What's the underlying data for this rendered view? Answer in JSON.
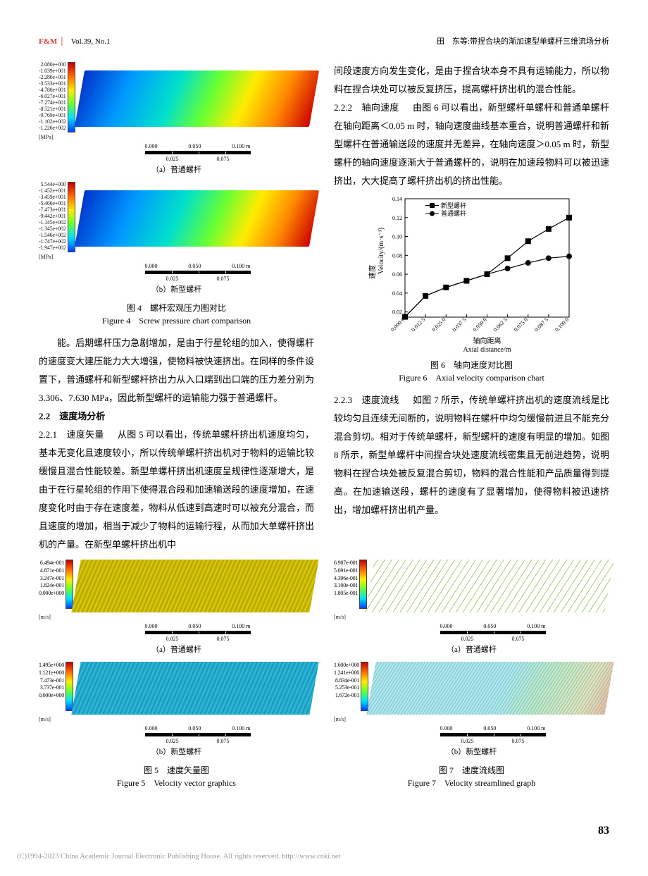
{
  "header": {
    "journal": "F&M",
    "volume": "Vol.39, No.1",
    "article_ref": "田　东等:带捏合块的渐加速型单螺杆三维流场分析"
  },
  "fig4": {
    "a": {
      "colorbar_values": [
        "2.080e+000",
        "-1.039e+001",
        "-2.286e+001",
        "-3.533e+001",
        "-4.780e+001",
        "-6.027e+001",
        "-7.274e+001",
        "-8.521e+001",
        "-9.769e+001",
        "-1.102e+002",
        "-1.226e+002"
      ],
      "unit": "[MPa]",
      "scale_ticks_top": [
        "0.000",
        "0.050",
        "0.100 m"
      ],
      "scale_ticks_bottom": [
        "0.025",
        "0.075"
      ],
      "caption": "（a）普通螺杆",
      "gradient": "linear-gradient(105deg, #0033cc 0%, #0099ff 20%, #00e0cc 40%, #66ff33 55%, #ffec00 70%, #ff8800 85%, #cc0000 100%)"
    },
    "b": {
      "colorbar_values": [
        "5.544e+000",
        "-1.452e+001",
        "-3.459e+001",
        "-5.466e+001",
        "-7.473e+001",
        "-9.442e+001",
        "-1.145e+002",
        "-1.345e+002",
        "-1.546e+002",
        "-1.747e+002",
        "-1.947e+002"
      ],
      "unit": "[MPa]",
      "scale_ticks_top": [
        "0.000",
        "0.050",
        "0.100 m"
      ],
      "scale_ticks_bottom": [
        "0.025",
        "0.075"
      ],
      "caption": "（b）新型螺杆",
      "gradient": "linear-gradient(105deg, #0033cc 0%, #0099ff 22%, #00e0cc 42%, #66ff33 58%, #ffec00 72%, #ff8800 86%, #cc0000 100%)"
    },
    "caption_cn": "图 4　螺杆宏观压力图对比",
    "caption_en": "Figure 4　Screw pressure chart comparison"
  },
  "text": {
    "p1": "能。后期螺杆压力急剧增加，是由于行星轮组的加入，使得螺杆的速度变大建压能力大大增强，使物料被快速挤出。在同样的条件设置下，普通螺杆和新型螺杆挤出力从入口端到出口端的压力差分别为 3.306、7.630 MPa，因此新型螺杆的运输能力强于普通螺杆。",
    "h22": "2.2　速度场分析",
    "p221_head": "2.2.1　速度矢量　",
    "p221": "从图 5 可以看出，传统单螺杆挤出机速度均匀，基本无变化且速度较小，所以传统单螺杆挤出机对于物料的运输比较缓慢且混合性能较差。新型单螺杆挤出机速度呈规律性逐渐增大，是由于在行星轮组的作用下使得混合段和加速输送段的速度增加，在速度变化时由于存在速度差，物料从低速到高速时可以被充分混合，而且速度的增加，相当于减少了物料的运输行程，从而加大单螺杆挤出机的产量。在新型单螺杆挤出机中",
    "p_r1": "间段速度方向发生变化，是由于捏合块本身不具有运输能力，所以物料在捏合块处可以被反复挤压，提高螺杆挤出机的混合性能。",
    "p222_head": "2.2.2　轴向速度　",
    "p222": "由图 6 可以看出，新型螺杆单螺杆和普通单螺杆在轴向距离＜0.05 m 时，轴向速度曲线基本重合，说明普通螺杆和新型螺杆在普通输送段的速度并无差异，在轴向速度＞0.05 m 时，新型螺杆的轴向速度逐渐大于普通螺杆的，说明在加速段物料可以被迅速挤出，大大提高了螺杆挤出机的挤出性能。",
    "p223_head": "2.2.3　速度流线　",
    "p223": "如图 7 所示，传统单螺杆挤出机的速度流线是比较均匀且连续无间断的，说明物料在螺杆中均匀缓慢前进且不能充分混合剪切。相对于传统单螺杆，新型螺杆的速度有明显的增加。如图 8 所示，新型单螺杆中间捏合块处速度流线密集且无前进趋势，说明物料在捏合块处被反复混合剪切，物料的混合性能和产品质量得到提高。在加速输送段，螺杆的速度有了显著增加，使得物料被迅速挤出，增加螺杆挤出机产量。"
  },
  "fig6": {
    "legend": [
      "新型螺杆",
      "普通螺杆"
    ],
    "ylabel_cn": "速度",
    "ylabel_en": "Velocity/(m·s⁻¹)",
    "xlabel_cn": "轴向距离",
    "xlabel_en": "Axial distance/m",
    "yticks": [
      "0.02",
      "0.04",
      "0.06",
      "0.08",
      "0.10",
      "0.12",
      "0.14"
    ],
    "ylim": [
      0.0145,
      0.14
    ],
    "xticks": [
      "0.000 0",
      "0.012 5",
      "0.025 0",
      "0.037 5",
      "0.050 0",
      "0.062 5",
      "0.075 0",
      "0.087 5",
      "0.100 0"
    ],
    "xlim": [
      0,
      0.1
    ],
    "series_new": {
      "marker": "square",
      "color": "#000000",
      "data": [
        [
          0.0,
          0.0148
        ],
        [
          0.0125,
          0.037
        ],
        [
          0.025,
          0.046
        ],
        [
          0.0375,
          0.053
        ],
        [
          0.05,
          0.06
        ],
        [
          0.0625,
          0.077
        ],
        [
          0.075,
          0.095
        ],
        [
          0.0875,
          0.108
        ],
        [
          0.1,
          0.12
        ]
      ]
    },
    "series_old": {
      "marker": "circle",
      "color": "#000000",
      "data": [
        [
          0.0,
          0.0148
        ],
        [
          0.0125,
          0.037
        ],
        [
          0.025,
          0.046
        ],
        [
          0.0375,
          0.053
        ],
        [
          0.05,
          0.06
        ],
        [
          0.0625,
          0.066
        ],
        [
          0.075,
          0.072
        ],
        [
          0.0875,
          0.077
        ],
        [
          0.1,
          0.079
        ]
      ]
    },
    "caption_cn": "图 6　轴向速度对比图",
    "caption_en": "Figure 6　Axial velocity comparison chart",
    "tick_fontsize": 8,
    "label_fontsize": 10,
    "line_width": 1.2,
    "marker_size": 4,
    "background_color": "#ffffff",
    "axis_color": "#000000"
  },
  "fig5": {
    "a": {
      "colorbar_values": [
        "6.494e-001",
        "4.871e-001",
        "3.247e-001",
        "1.824e-001",
        "0.000e+000"
      ],
      "unit": "[m/s]",
      "caption": "（a）普通螺杆"
    },
    "b": {
      "colorbar_values": [
        "1.495e+000",
        "1.121e+000",
        "7.473e-001",
        "3.737e-001",
        "0.000e+000"
      ],
      "unit": "[m/s]",
      "caption": "（b）新型螺杆"
    },
    "caption_cn": "图 5　速度矢量图",
    "caption_en": "Figure 5　Velocity vector graphics",
    "scale_ticks_top": [
      "0.000",
      "0.050",
      "0.100 m"
    ],
    "scale_ticks_bottom": [
      "0.025",
      "0.075"
    ]
  },
  "fig7": {
    "a": {
      "colorbar_values": [
        "6.987e-001",
        "5.691e-001",
        "4.396e-001",
        "3.100e-001",
        "1.805e-001"
      ],
      "unit": "[m/s]",
      "caption": "（a）普通螺杆"
    },
    "b": {
      "colorbar_values": [
        "1.600e+000",
        "1.241e+000",
        "8.834e-001",
        "5.253e-001",
        "1.672e-001"
      ],
      "unit": "[m/s]",
      "caption": "（b）新型螺杆"
    },
    "caption_cn": "图 7　速度流线图",
    "caption_en": "Figure 7　Velocity streamlined graph",
    "scale_ticks_top": [
      "0.000",
      "0.050",
      "0.100 m"
    ],
    "scale_ticks_bottom": [
      "0.025",
      "0.075"
    ]
  },
  "page_number": "83",
  "footer": "(C)1994-2023 China Academic Journal Electronic Publishing House. All rights reserved.    http://www.cnki.net"
}
